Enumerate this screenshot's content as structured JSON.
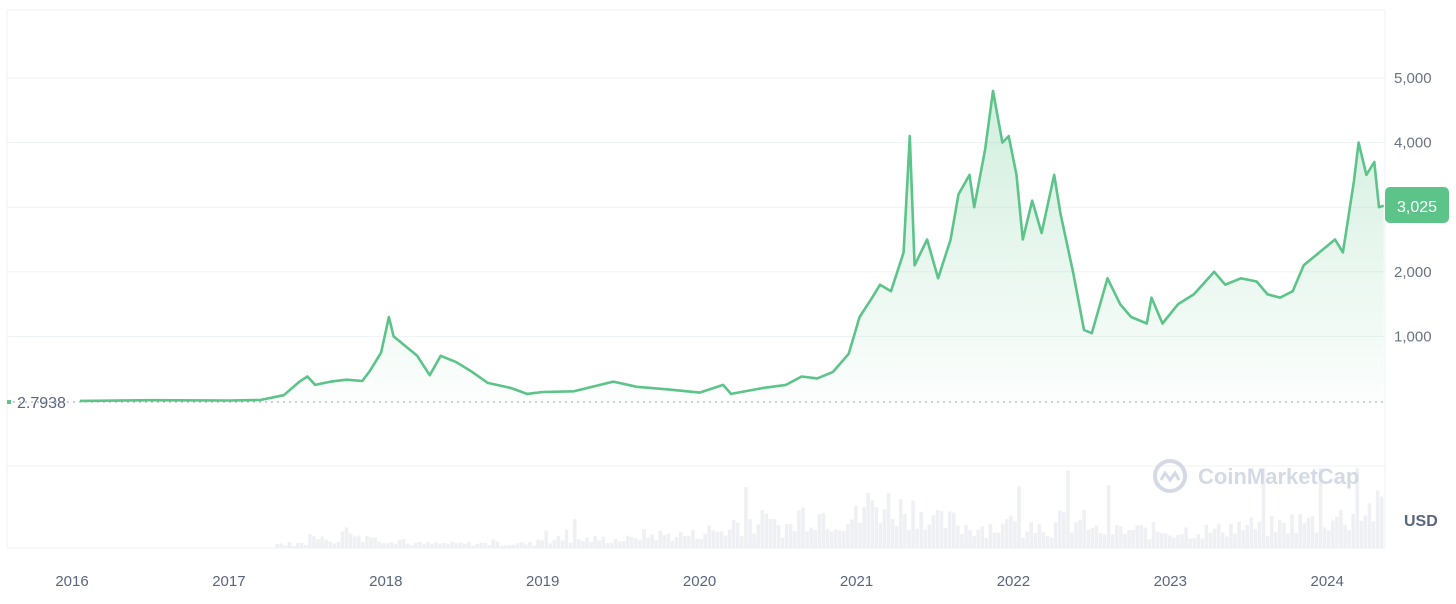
{
  "chart_data": {
    "type": "area",
    "title": "",
    "xlabel": "",
    "ylabel": "",
    "currency_label": "USD",
    "watermark": "CoinMarketCap",
    "ylim": [
      0,
      6000
    ],
    "xlim": [
      2015.95,
      2024.36
    ],
    "grid": true,
    "y_ticks": [
      {
        "v": 1000,
        "label": "1,000"
      },
      {
        "v": 2000,
        "label": "2,000"
      },
      {
        "v": 3000,
        "label": ""
      },
      {
        "v": 4000,
        "label": "4,000"
      },
      {
        "v": 5000,
        "label": "5,000"
      }
    ],
    "x_ticks": [
      {
        "v": 2016,
        "label": "2016"
      },
      {
        "v": 2017,
        "label": "2017"
      },
      {
        "v": 2018,
        "label": "2018"
      },
      {
        "v": 2019,
        "label": "2019"
      },
      {
        "v": 2020,
        "label": "2020"
      },
      {
        "v": 2021,
        "label": "2021"
      },
      {
        "v": 2022,
        "label": "2022"
      },
      {
        "v": 2023,
        "label": "2023"
      },
      {
        "v": 2024,
        "label": "2024"
      }
    ],
    "start_price": {
      "value": 2.7938,
      "label": "2.7938"
    },
    "current_price": {
      "value": 3025,
      "label": "3,025"
    },
    "colors": {
      "line": "#5cc489",
      "badge": "#5cc489",
      "start_marker": "#ea3943",
      "volume": "#eef0f3"
    },
    "series": [
      {
        "x": [
          2016.05,
          2016.5,
          2017.0,
          2017.2,
          2017.35,
          2017.45,
          2017.5,
          2017.55,
          2017.65,
          2017.75,
          2017.85,
          2017.9,
          2017.97,
          2018.02,
          2018.05,
          2018.1,
          2018.2,
          2018.28,
          2018.35,
          2018.45,
          2018.55,
          2018.65,
          2018.8,
          2018.9,
          2019.0,
          2019.2,
          2019.45,
          2019.6,
          2019.8,
          2020.0,
          2020.15,
          2020.2,
          2020.4,
          2020.55,
          2020.65,
          2020.75,
          2020.85,
          2020.95,
          2021.02,
          2021.1,
          2021.15,
          2021.22,
          2021.3,
          2021.34,
          2021.37,
          2021.45,
          2021.52,
          2021.6,
          2021.65,
          2021.72,
          2021.75,
          2021.82,
          2021.87,
          2021.93,
          2021.97,
          2022.02,
          2022.06,
          2022.12,
          2022.18,
          2022.26,
          2022.3,
          2022.38,
          2022.45,
          2022.5,
          2022.6,
          2022.68,
          2022.75,
          2022.85,
          2022.88,
          2022.95,
          2023.05,
          2023.15,
          2023.28,
          2023.35,
          2023.45,
          2023.55,
          2023.62,
          2023.7,
          2023.78,
          2023.85,
          2023.95,
          2024.05,
          2024.1,
          2024.17,
          2024.2,
          2024.25,
          2024.3,
          2024.33,
          2024.36
        ],
        "y": [
          1,
          12,
          8,
          15,
          90,
          300,
          380,
          250,
          300,
          330,
          310,
          470,
          750,
          1300,
          1000,
          900,
          700,
          400,
          700,
          600,
          450,
          280,
          200,
          110,
          140,
          150,
          300,
          220,
          180,
          130,
          250,
          110,
          200,
          250,
          380,
          350,
          450,
          730,
          1300,
          1600,
          1800,
          1700,
          2300,
          4100,
          2100,
          2500,
          1900,
          2500,
          3200,
          3500,
          3000,
          3900,
          4800,
          4000,
          4100,
          3500,
          2500,
          3100,
          2600,
          3500,
          2900,
          2000,
          1100,
          1050,
          1900,
          1500,
          1300,
          1200,
          1600,
          1200,
          1500,
          1650,
          2000,
          1800,
          1900,
          1850,
          1650,
          1600,
          1700,
          2100,
          2300,
          2500,
          2300,
          3400,
          4000,
          3500,
          3700,
          3000,
          3025
        ]
      }
    ],
    "volume_relative": [
      0,
      0,
      0,
      0,
      0,
      0,
      1,
      2,
      3,
      2,
      1,
      1,
      1,
      1,
      2,
      2,
      2,
      3,
      3,
      4,
      6,
      5,
      8,
      7,
      10,
      9,
      6,
      5,
      5,
      5,
      6,
      4,
      4,
      4,
      4,
      5,
      5,
      6,
      7,
      9
    ]
  }
}
